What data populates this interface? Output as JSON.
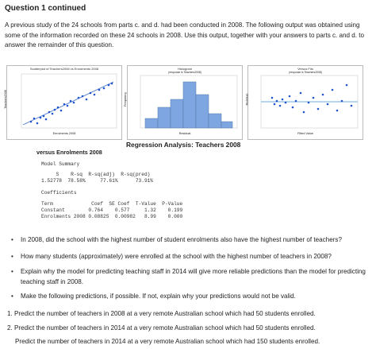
{
  "header": {
    "title": "Question 1 continued"
  },
  "intro": {
    "text": "A previous study of the 24 schools from parts c. and d. had been conducted in 2008. The following output was obtained using some of the information recorded on these 24 schools in 2008. Use this output, together with your answers to parts c. and d. to answer the remainder of this question."
  },
  "plots": {
    "scatter": {
      "title": "Scatterplot of Teachers2008 vs Enrolments 2008",
      "xlabel": "Enrolments 2008",
      "ylabel": "Teachers2008"
    },
    "histogram": {
      "title": "Histogram",
      "subtitle": "(response is Teachers2008)",
      "xlabel": "Residual",
      "ylabel": "Frequency"
    },
    "versus": {
      "title": "Versus Fits",
      "subtitle": "(response is Teachers2008)",
      "xlabel": "Fitted Value",
      "ylabel": "Residual"
    }
  },
  "regression": {
    "title": "Regression Analysis: Teachers 2008",
    "subtitle": "versus Enrolments 2008",
    "model_summary_label": "Model Summary",
    "summary_header": "     S    R-sq  R-sq(adj)  R-sq(pred)",
    "summary_values": "1.52778  78.58%     77.61%      73.91%",
    "coefficients_label": "Coefficients",
    "coef_header": "Term             Coef  SE Coef  T-Value  P-Value",
    "coef_rows": [
      "Constant        0.764    0.577     1.32    0.199",
      "Enrolments 2008 0.08825  0.00982   8.99    0.000"
    ]
  },
  "questions": {
    "bullets": [
      "In 2008, did the school with the highest number of student enrolments also have the highest number of teachers?",
      "How many students (approximately) were enrolled at the school with the highest number of teachers in 2008?",
      "Explain why the model for predicting teaching staff in 2014 will give more reliable predictions than the model for predicting teaching staff in 2008.",
      "Make the following predictions, if possible. If not, explain why your predictions would not be valid."
    ],
    "numbered": [
      "1. Predict the number of teachers in 2008 at a very remote Australian school which had 50 students enrolled.",
      "2. Predict the number of teachers in 2014 at a very remote Australian school which had 50 students enrolled.",
      "Predict the number of teachers in 2014 at a very remote Australian school which had 150 students enrolled."
    ]
  },
  "colors": {
    "points": "#2255cc",
    "bars": "#7ea6e0",
    "fit_line": "#4a78d0",
    "zero_line": "#3a8fd8"
  }
}
